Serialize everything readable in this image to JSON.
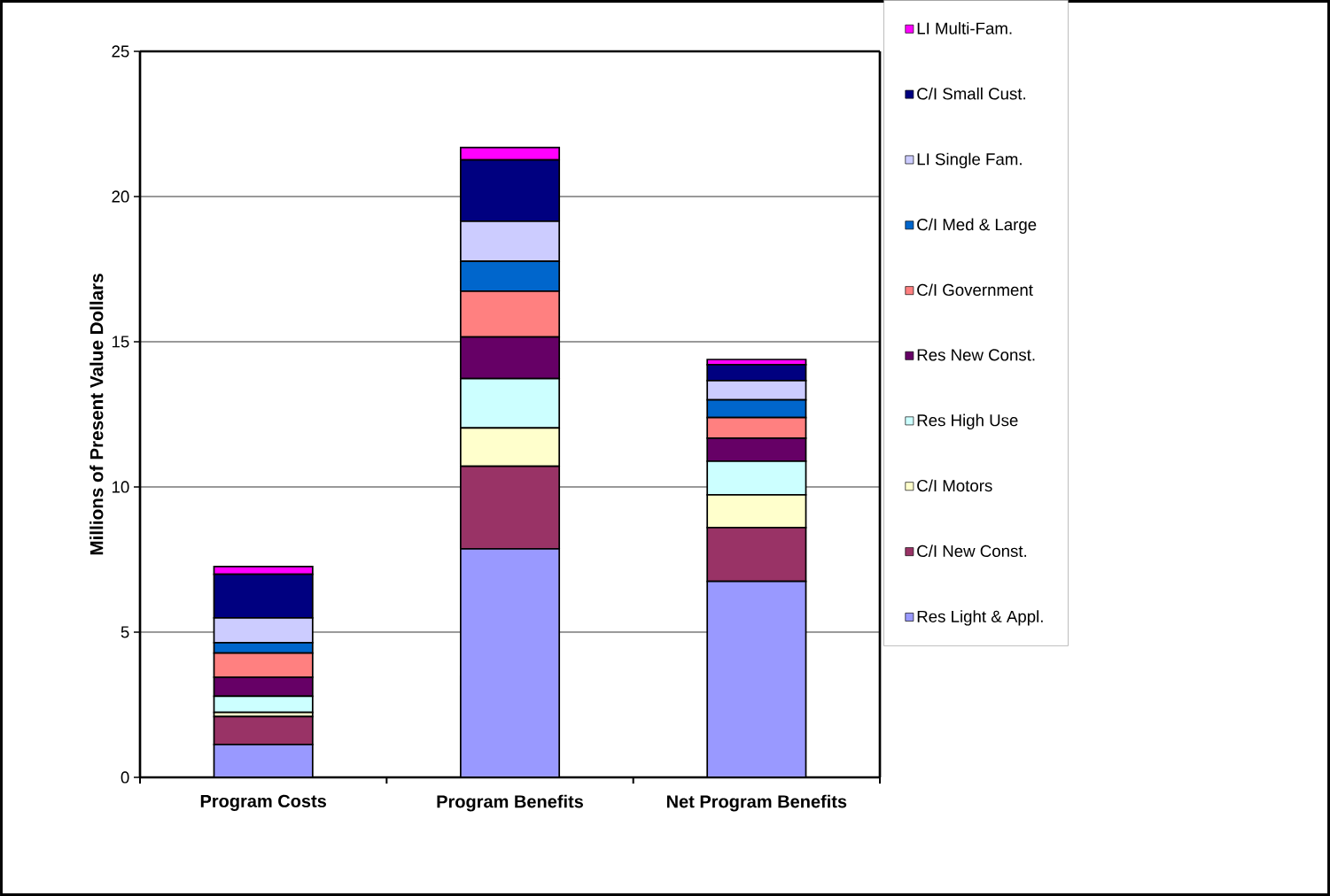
{
  "chart_data": {
    "type": "bar",
    "stacked": true,
    "ylabel": "Millions of Present Value Dollars",
    "categories": [
      "Program Costs",
      "Program Benefits",
      "Net Program Benefits"
    ],
    "ylim": [
      0,
      25
    ],
    "yticks": [
      0,
      5,
      10,
      15,
      20,
      25
    ],
    "grid": "y",
    "legend": "right",
    "series": [
      {
        "name": "Res Light & Appl.",
        "color": "#9999ff",
        "values": [
          1.13,
          7.87,
          6.75
        ]
      },
      {
        "name": "C/I New  Const.",
        "color": "#993366",
        "values": [
          0.96,
          2.84,
          1.85
        ]
      },
      {
        "name": "C/I  Motors",
        "color": "#ffffcc",
        "values": [
          0.15,
          1.32,
          1.13
        ]
      },
      {
        "name": "Res High Use",
        "color": "#ccffff",
        "values": [
          0.55,
          1.7,
          1.16
        ]
      },
      {
        "name": "Res New  Const.",
        "color": "#660066",
        "values": [
          0.66,
          1.43,
          0.79
        ]
      },
      {
        "name": "C/I Government",
        "color": "#ff8080",
        "values": [
          0.83,
          1.58,
          0.71
        ]
      },
      {
        "name": "C/I Med & Large",
        "color": "#0066cc",
        "values": [
          0.36,
          1.03,
          0.61
        ]
      },
      {
        "name": "LI Single Fam.",
        "color": "#ccccff",
        "values": [
          0.85,
          1.38,
          0.66
        ]
      },
      {
        "name": "C/I Small Cust.",
        "color": "#000080",
        "values": [
          1.5,
          2.11,
          0.55
        ]
      },
      {
        "name": "LI Multi-Fam.",
        "color": "#ff00ff",
        "values": [
          0.27,
          0.43,
          0.18
        ]
      }
    ]
  }
}
